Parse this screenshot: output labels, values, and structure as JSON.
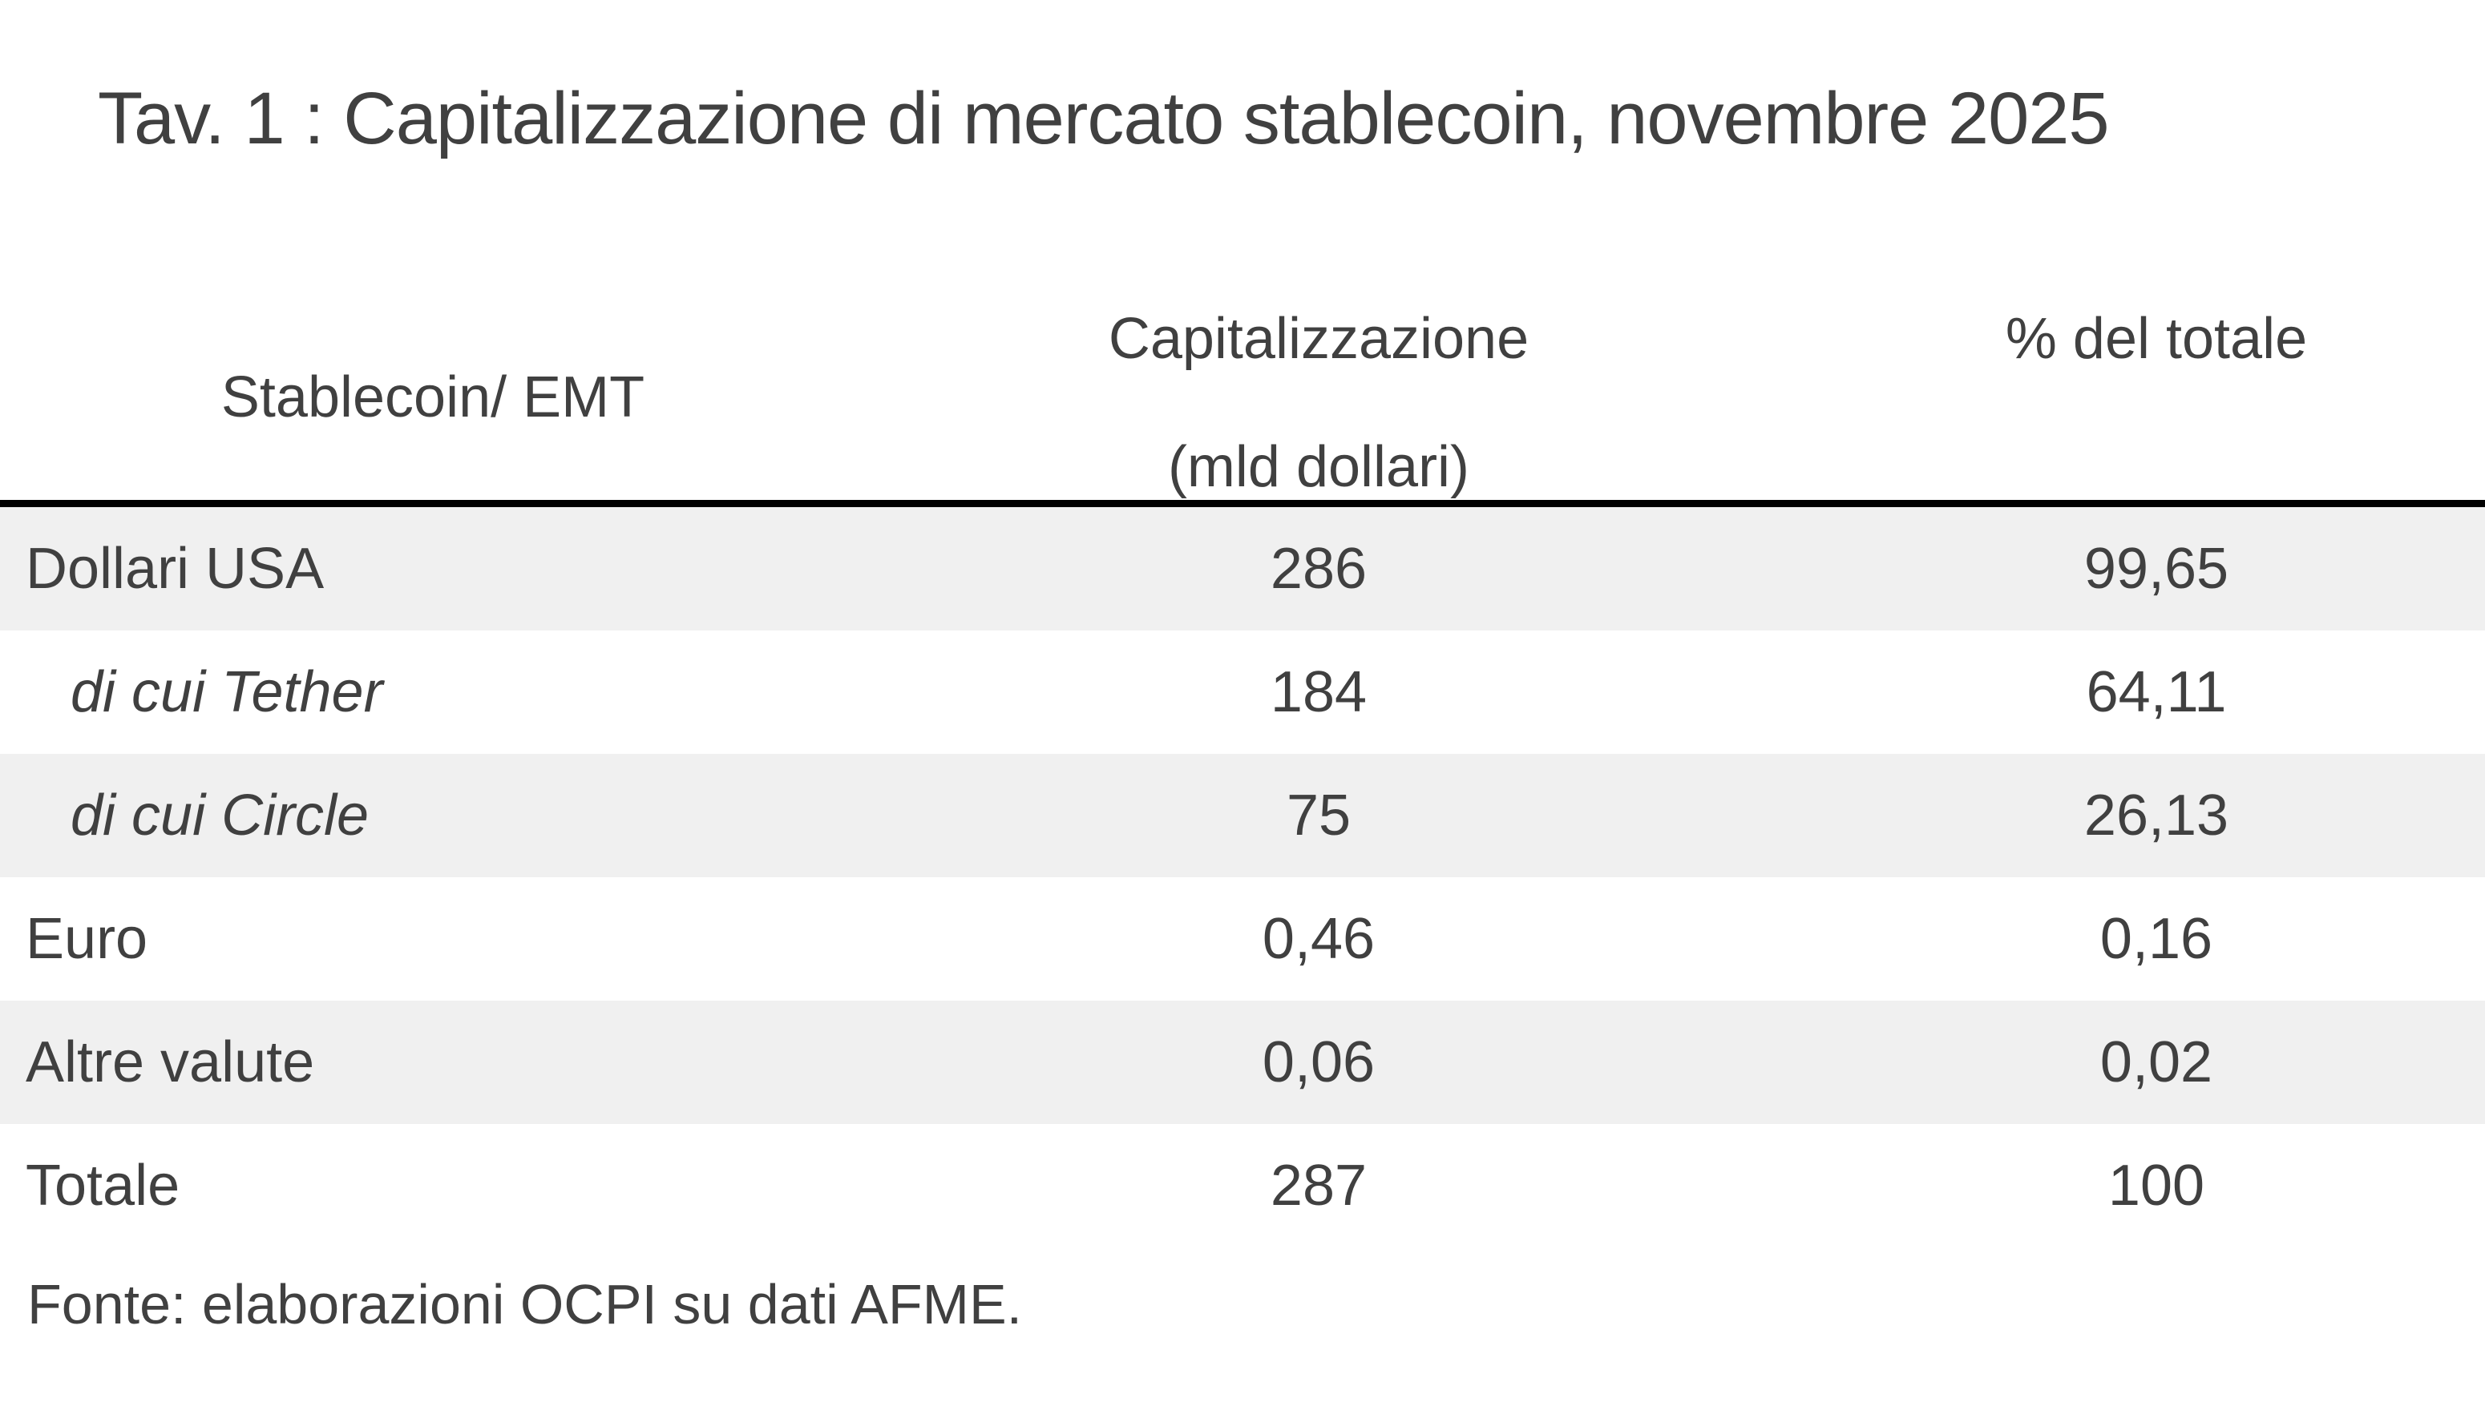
{
  "title": "Tav. 1 : Capitalizzazione di mercato stablecoin, novembre 2025",
  "table": {
    "columns": [
      {
        "label": "Stablecoin/ EMT"
      },
      {
        "label": "Capitalizzazione",
        "sublabel": "(mld dollari)"
      },
      {
        "label": "% del totale"
      }
    ],
    "rows": [
      {
        "label": "Dollari USA",
        "cap": "286",
        "pct": "99,65"
      },
      {
        "label": "di cui Tether",
        "cap": "184",
        "pct": "64,11"
      },
      {
        "label": "di cui Circle",
        "cap": "75",
        "pct": "26,13"
      },
      {
        "label": "Euro",
        "cap": "0,46",
        "pct": "0,16"
      },
      {
        "label": "Altre valute",
        "cap": "0,06",
        "pct": "0,02"
      },
      {
        "label": "Totale",
        "cap": "287",
        "pct": "100"
      }
    ]
  },
  "footer": {
    "source": "Fonte: elaborazioni OCPI su dati AFME."
  },
  "colors": {
    "background": "#ffffff",
    "text": "#404040",
    "stripe": "#f0f0f0",
    "table_top_border": "#000000"
  }
}
